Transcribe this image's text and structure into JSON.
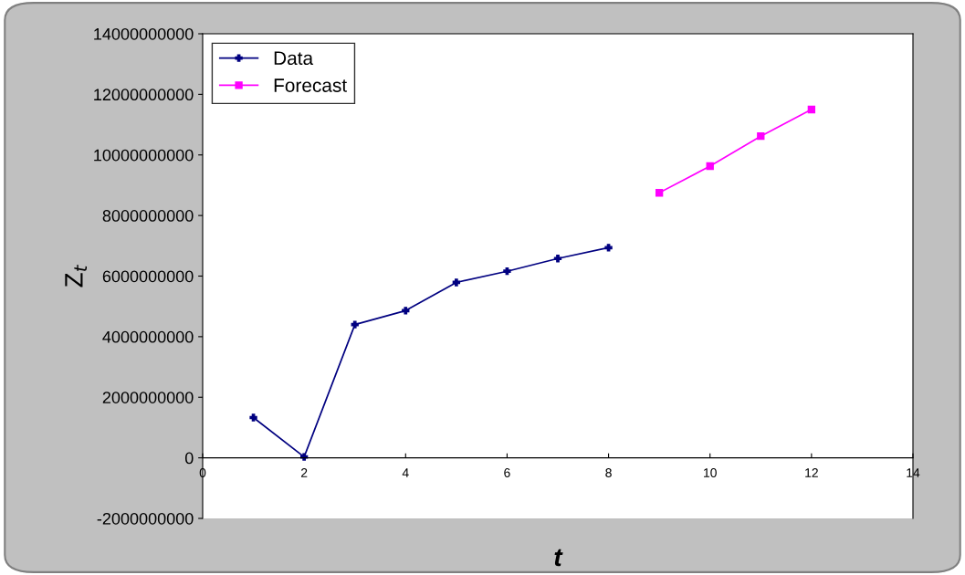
{
  "chart_data": {
    "type": "line",
    "xlabel": "t",
    "ylabel": "Z$_{t}$",
    "xlim": [
      0,
      14
    ],
    "xticks": [
      0,
      2,
      4,
      6,
      8,
      10,
      12,
      14
    ],
    "ylim": [
      -2000000000,
      14000000000
    ],
    "yticks": [
      -2000000000,
      0,
      2000000000,
      4000000000,
      6000000000,
      8000000000,
      10000000000,
      12000000000,
      14000000000
    ],
    "grid": false,
    "legend": "top left",
    "series": [
      {
        "name": "Data",
        "color": "#000080",
        "marker": "cross",
        "x": [
          1,
          2,
          3,
          4,
          5,
          6,
          7,
          8
        ],
        "values": [
          1330000000,
          30000000,
          4400000000,
          4860000000,
          5790000000,
          6160000000,
          6580000000,
          6940000000
        ]
      },
      {
        "name": "Forecast",
        "color": "#ff00ff",
        "marker": "square",
        "x": [
          9,
          10,
          11,
          12
        ],
        "values": [
          8750000000,
          9630000000,
          10620000000,
          11500000000
        ]
      }
    ]
  }
}
